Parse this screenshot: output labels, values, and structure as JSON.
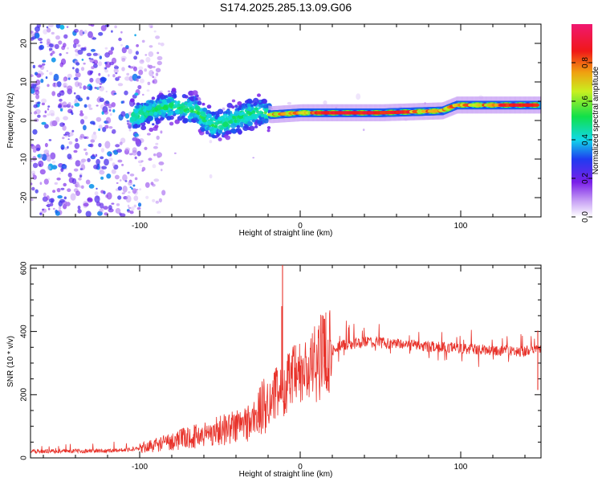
{
  "figure": {
    "title": "S174.2025.285.13.09.G06"
  },
  "chart_data": [
    {
      "type": "heatmap",
      "name": "spectrogram",
      "title": "S174.2025.285.13.09.G06",
      "xlabel": "Height of straight line (km)",
      "ylabel": "Frequency (Hz)",
      "xlim": [
        -168,
        150
      ],
      "ylim": [
        -25,
        25
      ],
      "xticks": [
        -100,
        0,
        100
      ],
      "yticks": [
        -20,
        -10,
        0,
        10,
        20
      ],
      "colorbar": {
        "label": "Normalized spectral amplitude",
        "range": [
          0,
          1
        ],
        "ticks": [
          0.0,
          0.2,
          0.4,
          0.6,
          0.8
        ],
        "tick_labels": [
          "0.0",
          "0.2",
          "0.4",
          "0.6",
          "0.8"
        ],
        "colormap": "rainbow (violet → blue → cyan → green → yellow → red → magenta)"
      },
      "features": {
        "noise_region_x": [
          -168,
          -95
        ],
        "carrier_track": [
          {
            "x": -105,
            "f": 1.0
          },
          {
            "x": -80,
            "f": 4.0
          },
          {
            "x": -65,
            "f": 2.5
          },
          {
            "x": -55,
            "f": -1.5
          },
          {
            "x": -40,
            "f": 0.5
          },
          {
            "x": -25,
            "f": 2.5
          },
          {
            "x": -19,
            "f": 1.5
          },
          {
            "x": 0,
            "f": 2.0
          },
          {
            "x": 50,
            "f": 2.0
          },
          {
            "x": 88,
            "f": 2.5
          },
          {
            "x": 97,
            "f": 4.0
          },
          {
            "x": 150,
            "f": 4.0
          }
        ]
      }
    },
    {
      "type": "line",
      "name": "snr",
      "xlabel": "Height of straight line (km)",
      "ylabel": "SNR (10 * v/v)",
      "xlim": [
        -168,
        150
      ],
      "ylim": [
        0,
        610
      ],
      "xticks": [
        -100,
        0,
        100
      ],
      "yticks": [
        0,
        200,
        400,
        600
      ],
      "series": [
        {
          "name": "SNR",
          "color": "#e8322a",
          "trend": {
            "x": [
              -168,
              -120,
              -100,
              -80,
              -60,
              -40,
              -30,
              -20,
              -12,
              -5,
              5,
              15,
              25,
              40,
              60,
              80,
              100,
              120,
              140,
              150
            ],
            "y": [
              20,
              22,
              28,
              50,
              70,
              95,
              110,
              170,
              210,
              240,
              260,
              320,
              355,
              365,
              360,
              350,
              345,
              340,
              335,
              345
            ]
          },
          "spikes": [
            {
              "x": -11,
              "y": 615
            },
            {
              "x": -11.5,
              "y": 480
            },
            {
              "x": 15,
              "y": 440
            },
            {
              "x": 148,
              "y": 215
            }
          ]
        }
      ]
    }
  ]
}
